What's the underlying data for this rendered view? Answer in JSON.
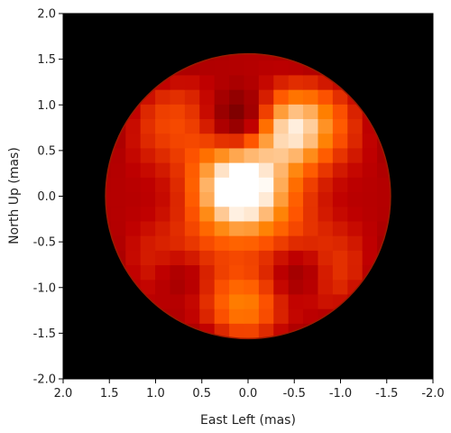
{
  "chart_data": {
    "type": "heatmap",
    "title": "",
    "xlabel": "East Left (mas)",
    "ylabel": "North Up (mas)",
    "xlim": [
      2.0,
      -2.0
    ],
    "ylim": [
      -2.0,
      2.0
    ],
    "x_ticks": [
      "2.0",
      "1.5",
      "1.0",
      "0.5",
      "0.0",
      "-0.5",
      "-1.0",
      "-1.5",
      "-2.0"
    ],
    "y_ticks": [
      "2.0",
      "1.5",
      "1.0",
      "0.5",
      "0.0",
      "-0.5",
      "-1.0",
      "-1.5",
      "-2.0"
    ],
    "grid": false,
    "background_color": "#000000",
    "colormap": "gist_heat",
    "disk": {
      "center_x_mas": 0.0,
      "center_y_mas": 0.0,
      "radius_mas": 1.55
    },
    "bright_regions": [
      {
        "x_mas": 0.1,
        "y_mas": 0.1,
        "intensity": 1.0
      },
      {
        "x_mas": -0.45,
        "y_mas": 0.75,
        "intensity": 0.95
      },
      {
        "x_mas": 0.05,
        "y_mas": -1.2,
        "intensity": 0.85
      }
    ],
    "dark_regions": [
      {
        "x_mas": 0.1,
        "y_mas": 0.85,
        "intensity": 0.35
      },
      {
        "x_mas": -0.55,
        "y_mas": -0.85,
        "intensity": 0.4
      },
      {
        "x_mas": 0.75,
        "y_mas": -0.9,
        "intensity": 0.4
      }
    ]
  }
}
